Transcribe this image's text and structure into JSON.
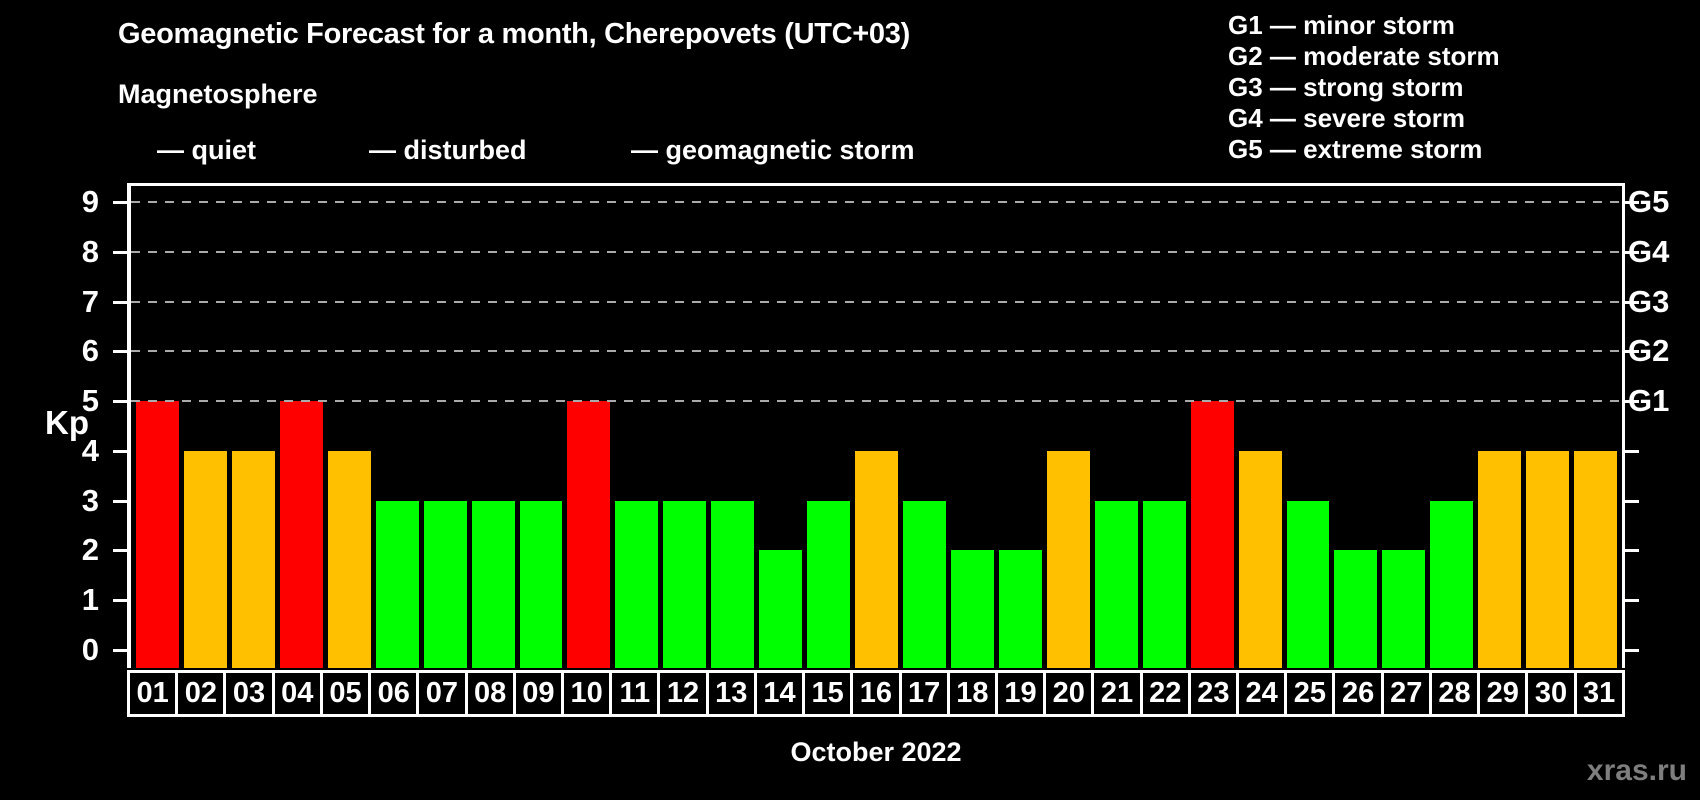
{
  "title": "Geomagnetic Forecast for a month, Cherepovets (UTC+03)",
  "subtitle": "Magnetosphere",
  "legend": {
    "items": [
      {
        "key": "quiet",
        "label": "— quiet",
        "color": "#00ff00"
      },
      {
        "key": "disturbed",
        "label": "— disturbed",
        "color": "#ffc000"
      },
      {
        "key": "storm",
        "label": "— geomagnetic storm",
        "color": "#ff0000"
      }
    ]
  },
  "g_legend": [
    "G1 — minor storm",
    "G2 — moderate storm",
    "G3 — strong storm",
    "G4 — severe storm",
    "G5 — extreme storm"
  ],
  "status_colors": {
    "quiet": "#00ff00",
    "disturbed": "#ffc000",
    "storm": "#ff0000"
  },
  "axis": {
    "y_label": "Kp",
    "y_ticks": [
      0,
      1,
      2,
      3,
      4,
      5,
      6,
      7,
      8,
      9
    ],
    "g_ticks": [
      {
        "kp": 5,
        "label": "G1"
      },
      {
        "kp": 6,
        "label": "G2"
      },
      {
        "kp": 7,
        "label": "G3"
      },
      {
        "kp": 8,
        "label": "G4"
      },
      {
        "kp": 9,
        "label": "G5"
      }
    ],
    "x_label": "October 2022"
  },
  "watermark": "xras.ru",
  "chart_data": {
    "type": "bar",
    "title": "Geomagnetic Forecast for a month, Cherepovets (UTC+03)",
    "xlabel": "October 2022",
    "ylabel": "Kp",
    "ylim": [
      0,
      9
    ],
    "grid": "dashed horizontal lines at Kp 5-9 only",
    "legend_position": "top",
    "x": [
      "01",
      "02",
      "03",
      "04",
      "05",
      "06",
      "07",
      "08",
      "09",
      "10",
      "11",
      "12",
      "13",
      "14",
      "15",
      "16",
      "17",
      "18",
      "19",
      "20",
      "21",
      "22",
      "23",
      "24",
      "25",
      "26",
      "27",
      "28",
      "29",
      "30",
      "31"
    ],
    "values": [
      5,
      4,
      4,
      5,
      4,
      3,
      3,
      3,
      3,
      5,
      3,
      3,
      3,
      2,
      3,
      4,
      3,
      2,
      2,
      4,
      3,
      3,
      5,
      4,
      3,
      2,
      2,
      3,
      4,
      4,
      4
    ],
    "status": [
      "storm",
      "disturbed",
      "disturbed",
      "storm",
      "disturbed",
      "quiet",
      "quiet",
      "quiet",
      "quiet",
      "storm",
      "quiet",
      "quiet",
      "quiet",
      "quiet",
      "quiet",
      "disturbed",
      "quiet",
      "quiet",
      "quiet",
      "disturbed",
      "quiet",
      "quiet",
      "storm",
      "disturbed",
      "quiet",
      "quiet",
      "quiet",
      "quiet",
      "disturbed",
      "disturbed",
      "disturbed"
    ]
  }
}
